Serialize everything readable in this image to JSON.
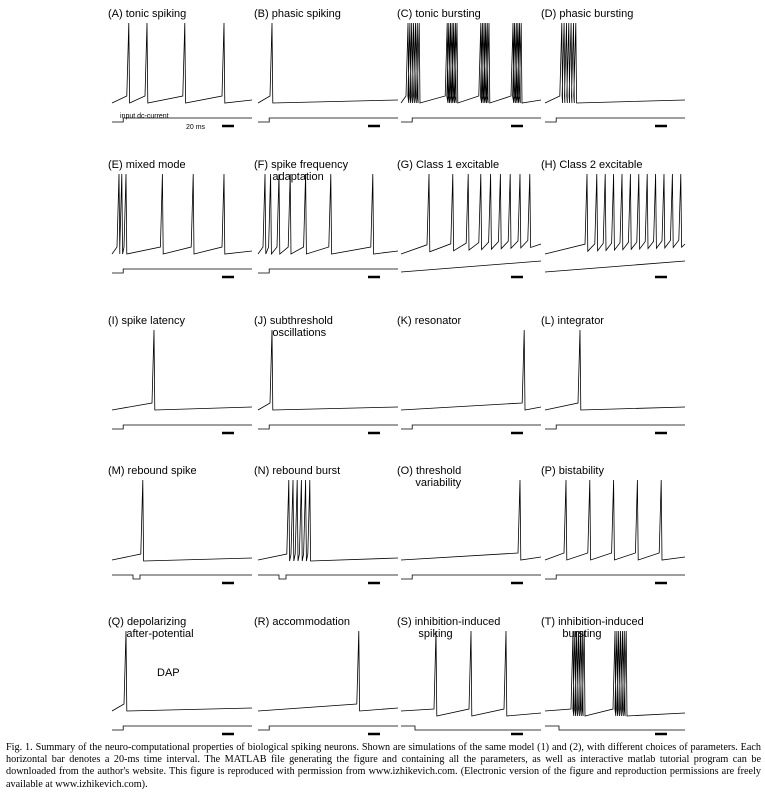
{
  "panels": [
    {
      "id": "A",
      "label": "(A) tonic spiking"
    },
    {
      "id": "B",
      "label": "(B) phasic spiking"
    },
    {
      "id": "C",
      "label": "(C) tonic bursting"
    },
    {
      "id": "D",
      "label": "(D) phasic bursting"
    },
    {
      "id": "E",
      "label": "(E) mixed mode"
    },
    {
      "id": "F",
      "label": "(F) spike frequency\n      adaptation"
    },
    {
      "id": "G",
      "label": "(G) Class 1 excitable"
    },
    {
      "id": "H",
      "label": "(H) Class 2 excitable"
    },
    {
      "id": "I",
      "label": "(I) spike latency"
    },
    {
      "id": "J",
      "label": "(J) subthreshold\n      oscillations"
    },
    {
      "id": "K",
      "label": "(K) resonator"
    },
    {
      "id": "L",
      "label": "(L) integrator"
    },
    {
      "id": "M",
      "label": "(M) rebound spike"
    },
    {
      "id": "N",
      "label": "(N) rebound burst"
    },
    {
      "id": "O",
      "label": "(O) threshold\n      variability"
    },
    {
      "id": "P",
      "label": "(P) bistability"
    },
    {
      "id": "Q",
      "label": "(Q) depolarizing\n      after-potential"
    },
    {
      "id": "R",
      "label": "(R) accommodation"
    },
    {
      "id": "S",
      "label": "(S) inhibition-induced\n       spiking"
    },
    {
      "id": "T",
      "label": "(T) inhibition-induced\n       bursting"
    }
  ],
  "annotations": {
    "input_label": "input dc-current",
    "scale_label": "20 ms",
    "dap_label": "DAP"
  },
  "caption": "Fig. 1.    Summary of the neuro-computational properties of biological spiking neurons. Shown are simulations of the same model (1) and (2), with different choices of parameters. Each horizontal bar denotes a 20-ms time interval. The MATLAB file generating the figure and containing all the parameters, as well as interactive matlab tutorial program can be downloaded from the author's website. This figure is reproduced with permission from www.izhikevich.com. (Electronic version of the figure and reproduction permissions are freely available at www.izhikevich.com)."
}
